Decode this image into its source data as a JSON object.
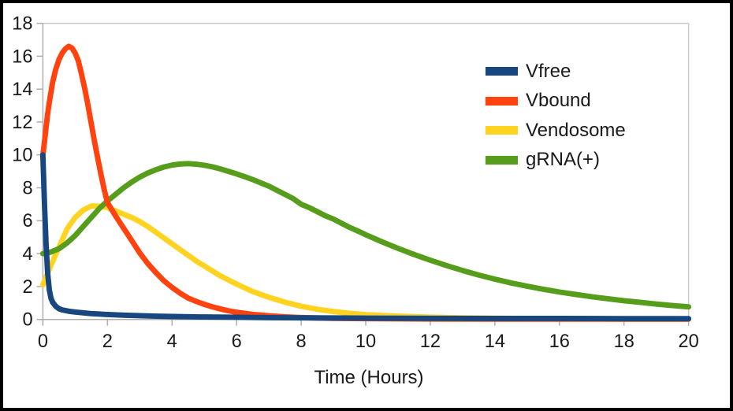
{
  "chart_data": {
    "type": "line",
    "title": "",
    "xlabel": "Time (Hours)",
    "ylabel": "",
    "xlim": [
      0,
      20
    ],
    "ylim": [
      0,
      18
    ],
    "x_ticks": [
      0,
      2,
      4,
      6,
      8,
      10,
      12,
      14,
      16,
      18,
      20
    ],
    "y_ticks": [
      0,
      2,
      4,
      6,
      8,
      10,
      12,
      14,
      16,
      18
    ],
    "grid": {
      "horizontal_gridlines": [
        18
      ],
      "right_border_at_x": 20,
      "other_gridlines": false
    },
    "legend": {
      "position": "upper-right-inside",
      "border": "none"
    },
    "axis_color": "#ADADAD",
    "grid_color": "#C9C9C9",
    "text_color": "#1A1A1A",
    "line_width": 7,
    "z_order": [
      "Vendosome",
      "gRNA(+)",
      "Vbound",
      "Vfree"
    ],
    "series": [
      {
        "name": "Vfree",
        "color": "#17477E",
        "points": [
          [
            0,
            10
          ],
          [
            0.05,
            7.0
          ],
          [
            0.1,
            4.5
          ],
          [
            0.15,
            2.8
          ],
          [
            0.2,
            1.8
          ],
          [
            0.25,
            1.3
          ],
          [
            0.3,
            1.05
          ],
          [
            0.4,
            0.8
          ],
          [
            0.5,
            0.65
          ],
          [
            0.6,
            0.58
          ],
          [
            0.8,
            0.5
          ],
          [
            1,
            0.45
          ],
          [
            1.5,
            0.36
          ],
          [
            2,
            0.3
          ],
          [
            2.5,
            0.26
          ],
          [
            3,
            0.23
          ],
          [
            3.5,
            0.2
          ],
          [
            4,
            0.18
          ],
          [
            5,
            0.15
          ],
          [
            6,
            0.13
          ],
          [
            7,
            0.11
          ],
          [
            8,
            0.1
          ],
          [
            9,
            0.09
          ],
          [
            10,
            0.08
          ],
          [
            12,
            0.07
          ],
          [
            14,
            0.06
          ],
          [
            16,
            0.06
          ],
          [
            18,
            0.05
          ],
          [
            20,
            0.05
          ]
        ]
      },
      {
        "name": "Vbound",
        "color": "#FF420E",
        "points": [
          [
            0,
            10.0
          ],
          [
            0.05,
            10.8
          ],
          [
            0.1,
            11.7
          ],
          [
            0.15,
            12.5
          ],
          [
            0.2,
            13.2
          ],
          [
            0.3,
            14.4
          ],
          [
            0.4,
            15.2
          ],
          [
            0.5,
            15.8
          ],
          [
            0.6,
            16.2
          ],
          [
            0.7,
            16.45
          ],
          [
            0.8,
            16.6
          ],
          [
            0.9,
            16.5
          ],
          [
            1.0,
            16.2
          ],
          [
            1.1,
            15.7
          ],
          [
            1.2,
            14.9
          ],
          [
            1.3,
            14.0
          ],
          [
            1.4,
            13.0
          ],
          [
            1.5,
            11.9
          ],
          [
            1.6,
            10.8
          ],
          [
            1.7,
            9.8
          ],
          [
            1.8,
            8.8
          ],
          [
            1.9,
            7.9
          ],
          [
            2.0,
            7.1
          ],
          [
            2.25,
            6.3
          ],
          [
            2.5,
            5.55
          ],
          [
            2.75,
            4.8
          ],
          [
            3,
            4.05
          ],
          [
            3.25,
            3.4
          ],
          [
            3.5,
            2.85
          ],
          [
            3.75,
            2.35
          ],
          [
            4,
            1.95
          ],
          [
            4.25,
            1.6
          ],
          [
            4.5,
            1.3
          ],
          [
            4.75,
            1.1
          ],
          [
            5,
            0.92
          ],
          [
            5.25,
            0.77
          ],
          [
            5.5,
            0.64
          ],
          [
            5.75,
            0.53
          ],
          [
            6,
            0.44
          ],
          [
            6.5,
            0.31
          ],
          [
            7,
            0.22
          ],
          [
            7.5,
            0.16
          ],
          [
            8,
            0.12
          ],
          [
            8.5,
            0.09
          ],
          [
            9,
            0.07
          ],
          [
            10,
            0.05
          ],
          [
            11,
            0.04
          ],
          [
            12,
            0.03
          ],
          [
            14,
            0.02
          ],
          [
            16,
            0.02
          ],
          [
            18,
            0.02
          ],
          [
            20,
            0.02
          ]
        ]
      },
      {
        "name": "Vendosome",
        "color": "#FFD320",
        "points": [
          [
            0,
            2.1
          ],
          [
            0.25,
            3.3
          ],
          [
            0.5,
            4.4
          ],
          [
            0.75,
            5.5
          ],
          [
            1,
            6.2
          ],
          [
            1.25,
            6.65
          ],
          [
            1.5,
            6.9
          ],
          [
            1.75,
            6.88
          ],
          [
            2,
            6.8
          ],
          [
            2.25,
            6.6
          ],
          [
            2.5,
            6.4
          ],
          [
            2.75,
            6.2
          ],
          [
            3,
            5.95
          ],
          [
            3.25,
            5.65
          ],
          [
            3.5,
            5.3
          ],
          [
            3.75,
            4.95
          ],
          [
            4,
            4.6
          ],
          [
            4.25,
            4.25
          ],
          [
            4.5,
            3.9
          ],
          [
            4.75,
            3.55
          ],
          [
            5,
            3.25
          ],
          [
            5.5,
            2.65
          ],
          [
            6,
            2.15
          ],
          [
            6.5,
            1.7
          ],
          [
            7,
            1.35
          ],
          [
            7.5,
            1.05
          ],
          [
            8,
            0.8
          ],
          [
            8.5,
            0.62
          ],
          [
            9,
            0.48
          ],
          [
            9.5,
            0.37
          ],
          [
            10,
            0.29
          ],
          [
            11,
            0.2
          ],
          [
            12,
            0.14
          ],
          [
            13,
            0.1
          ],
          [
            14,
            0.08
          ],
          [
            15,
            0.06
          ],
          [
            16,
            0.05
          ],
          [
            17,
            0.04
          ],
          [
            18,
            0.03
          ],
          [
            19,
            0.03
          ],
          [
            20,
            0.03
          ]
        ]
      },
      {
        "name": "gRNA(+)",
        "color": "#579D1C",
        "points": [
          [
            0,
            4.0
          ],
          [
            0.25,
            4.1
          ],
          [
            0.5,
            4.3
          ],
          [
            0.75,
            4.65
          ],
          [
            1,
            5.1
          ],
          [
            1.25,
            5.65
          ],
          [
            1.5,
            6.2
          ],
          [
            1.75,
            6.75
          ],
          [
            2,
            7.2
          ],
          [
            2.25,
            7.6
          ],
          [
            2.5,
            8.0
          ],
          [
            2.75,
            8.35
          ],
          [
            3,
            8.65
          ],
          [
            3.25,
            8.9
          ],
          [
            3.5,
            9.1
          ],
          [
            3.75,
            9.27
          ],
          [
            4,
            9.38
          ],
          [
            4.25,
            9.45
          ],
          [
            4.5,
            9.47
          ],
          [
            4.75,
            9.44
          ],
          [
            5,
            9.37
          ],
          [
            5.25,
            9.28
          ],
          [
            5.5,
            9.15
          ],
          [
            5.75,
            9.0
          ],
          [
            6,
            8.85
          ],
          [
            6.25,
            8.68
          ],
          [
            6.5,
            8.5
          ],
          [
            6.75,
            8.3
          ],
          [
            7,
            8.1
          ],
          [
            7.25,
            7.85
          ],
          [
            7.5,
            7.6
          ],
          [
            7.75,
            7.35
          ],
          [
            8,
            7.0
          ],
          [
            8.25,
            6.8
          ],
          [
            8.5,
            6.55
          ],
          [
            8.75,
            6.3
          ],
          [
            9,
            6.1
          ],
          [
            9.25,
            5.85
          ],
          [
            9.5,
            5.6
          ],
          [
            9.75,
            5.38
          ],
          [
            10,
            5.15
          ],
          [
            10.5,
            4.72
          ],
          [
            11,
            4.32
          ],
          [
            11.5,
            3.95
          ],
          [
            12,
            3.6
          ],
          [
            12.5,
            3.28
          ],
          [
            13,
            2.98
          ],
          [
            13.5,
            2.7
          ],
          [
            14,
            2.45
          ],
          [
            14.5,
            2.22
          ],
          [
            15,
            2.02
          ],
          [
            15.5,
            1.84
          ],
          [
            16,
            1.67
          ],
          [
            16.5,
            1.52
          ],
          [
            17,
            1.38
          ],
          [
            17.5,
            1.26
          ],
          [
            18,
            1.14
          ],
          [
            18.5,
            1.04
          ],
          [
            19,
            0.94
          ],
          [
            19.5,
            0.85
          ],
          [
            20,
            0.77
          ]
        ]
      }
    ]
  }
}
